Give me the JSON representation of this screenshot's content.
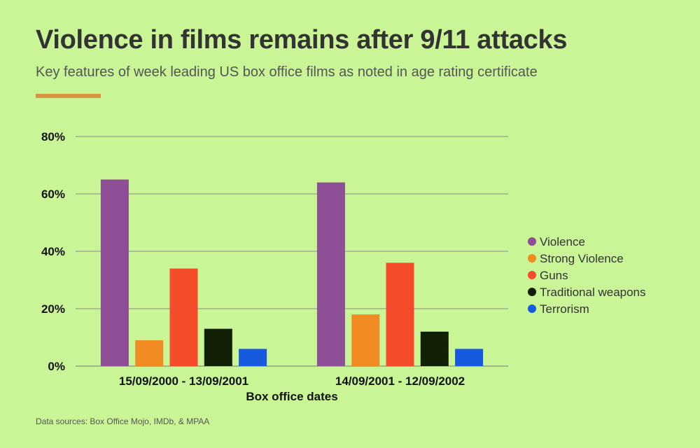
{
  "title": "Violence in films remains after 9/11 attacks",
  "subtitle": "Key features of week leading US box office films as noted in age rating certificate",
  "source": "Data sources: Box Office Mojo, IMDb, & MPAA",
  "chart_data": {
    "type": "bar",
    "categories": [
      "15/09/2000 - 13/09/2001",
      "14/09/2001 - 12/09/2002"
    ],
    "series": [
      {
        "name": "Violence",
        "values": [
          65,
          64
        ],
        "color": "#8f4f97"
      },
      {
        "name": "Strong Violence",
        "values": [
          9,
          18
        ],
        "color": "#f08c22"
      },
      {
        "name": "Guns",
        "values": [
          34,
          36
        ],
        "color": "#f44c2b"
      },
      {
        "name": "Traditional weapons",
        "values": [
          13,
          12
        ],
        "color": "#122006"
      },
      {
        "name": "Terrorism",
        "values": [
          6,
          6
        ],
        "color": "#175ae0"
      }
    ],
    "xlabel": "Box office dates",
    "ylabel": "",
    "ylim": [
      0,
      80
    ],
    "yticks": [
      "0%",
      "20%",
      "40%",
      "60%",
      "80%"
    ],
    "grid": true,
    "legend_position": "right"
  }
}
